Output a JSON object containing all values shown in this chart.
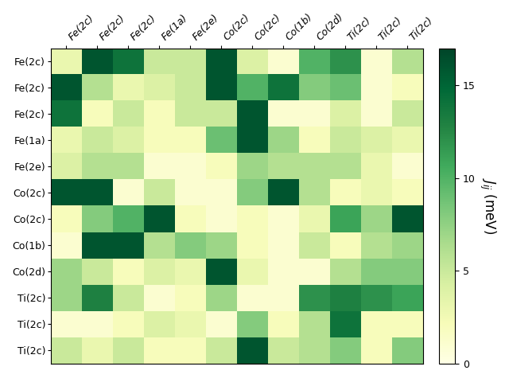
{
  "labels": [
    "Fe(2c)",
    "Fe(2c)",
    "Fe(2c)",
    "Fe(1a)",
    "Fe(2e)",
    "Co(2c)",
    "Co(2c)",
    "Co(1b)",
    "Co(2d)",
    "Ti(2c)",
    "Ti(2c)",
    "Ti(2c)"
  ],
  "matrix": [
    [
      3,
      16,
      14,
      5,
      5,
      16,
      4,
      1,
      10,
      12,
      1,
      6
    ],
    [
      16,
      6,
      3,
      4,
      5,
      16,
      10,
      14,
      8,
      9,
      1,
      2
    ],
    [
      14,
      2,
      5,
      2,
      5,
      5,
      16,
      1,
      1,
      4,
      1,
      5
    ],
    [
      3,
      5,
      4,
      2,
      2,
      9,
      16,
      7,
      2,
      5,
      4,
      3
    ],
    [
      4,
      6,
      6,
      1,
      1,
      2,
      7,
      6,
      6,
      6,
      3,
      1
    ],
    [
      16,
      16,
      1,
      5,
      1,
      1,
      8,
      16,
      6,
      2,
      3,
      2
    ],
    [
      2,
      8,
      10,
      16,
      2,
      1,
      2,
      1,
      3,
      11,
      7,
      16
    ],
    [
      1,
      16,
      16,
      6,
      8,
      7,
      2,
      1,
      5,
      2,
      6,
      7
    ],
    [
      7,
      5,
      2,
      4,
      3,
      16,
      3,
      1,
      1,
      6,
      8,
      8
    ],
    [
      7,
      13,
      5,
      1,
      2,
      7,
      1,
      1,
      12,
      13,
      12,
      11
    ],
    [
      1,
      1,
      2,
      4,
      3,
      1,
      8,
      2,
      6,
      14,
      2,
      2
    ],
    [
      5,
      3,
      5,
      2,
      2,
      5,
      16,
      5,
      6,
      8,
      2,
      8
    ]
  ],
  "vmin": 0,
  "vmax": 17,
  "colormap": "YlGn",
  "colorbar_label": "$J_{ij}$ (meV)",
  "colorbar_ticks": [
    0,
    5,
    10,
    15
  ],
  "figsize": [
    6.4,
    4.8
  ],
  "dpi": 100
}
